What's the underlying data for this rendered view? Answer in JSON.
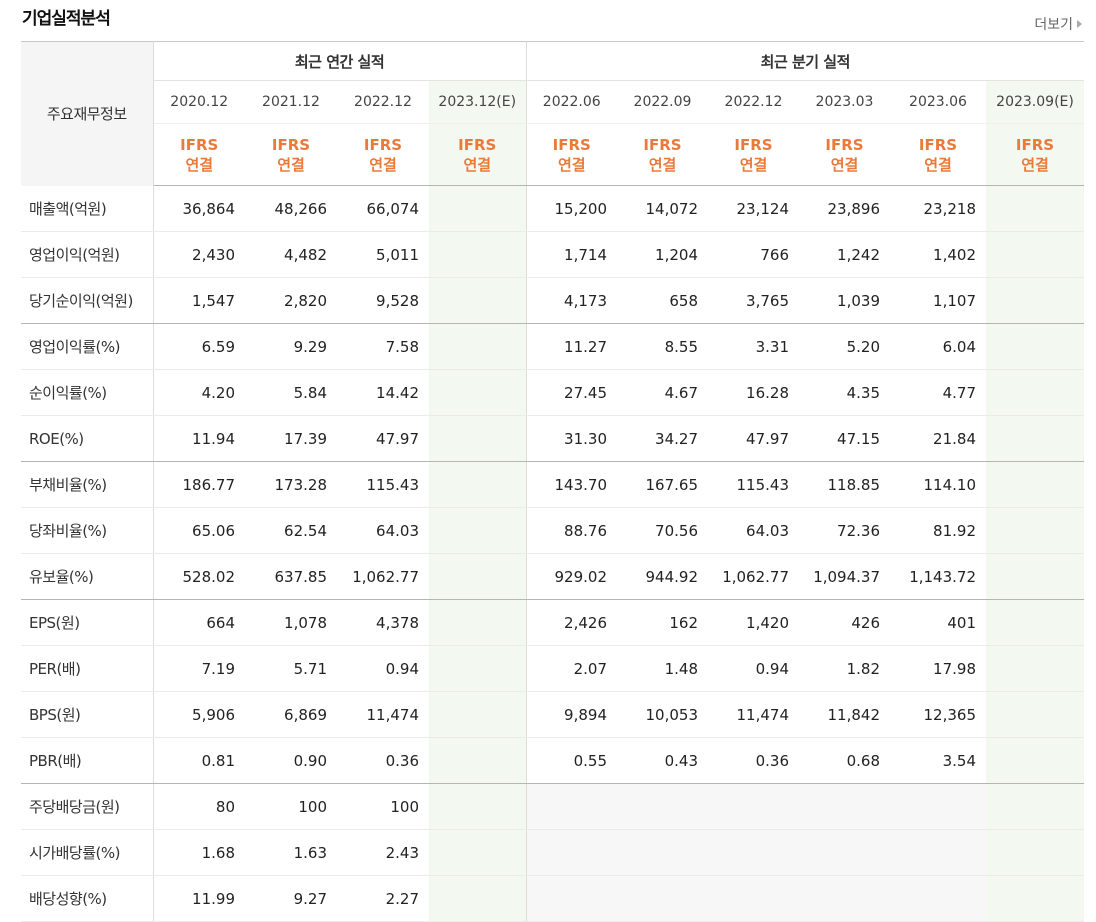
{
  "header": {
    "title": "기업실적분석",
    "more_label": "더보기"
  },
  "table": {
    "row_header": "주요재무정보",
    "groups": [
      "최근 연간 실적",
      "최근 분기 실적"
    ],
    "annual_periods": [
      "2020.12",
      "2021.12",
      "2022.12",
      "2023.12(E)"
    ],
    "quarter_periods": [
      "2022.06",
      "2022.09",
      "2022.12",
      "2023.03",
      "2023.06",
      "2023.09(E)"
    ],
    "basis_top": "IFRS",
    "basis_bottom": "연결",
    "rows": [
      {
        "label": "매출액(억원)",
        "annual": [
          "36,864",
          "48,266",
          "66,074",
          ""
        ],
        "quarter": [
          "15,200",
          "14,072",
          "23,124",
          "23,896",
          "23,218",
          ""
        ]
      },
      {
        "label": "영업이익(억원)",
        "annual": [
          "2,430",
          "4,482",
          "5,011",
          ""
        ],
        "quarter": [
          "1,714",
          "1,204",
          "766",
          "1,242",
          "1,402",
          ""
        ]
      },
      {
        "label": "당기순이익(억원)",
        "annual": [
          "1,547",
          "2,820",
          "9,528",
          ""
        ],
        "quarter": [
          "4,173",
          "658",
          "3,765",
          "1,039",
          "1,107",
          ""
        ]
      },
      {
        "label": "영업이익률(%)",
        "annual": [
          "6.59",
          "9.29",
          "7.58",
          ""
        ],
        "quarter": [
          "11.27",
          "8.55",
          "3.31",
          "5.20",
          "6.04",
          ""
        ]
      },
      {
        "label": "순이익률(%)",
        "annual": [
          "4.20",
          "5.84",
          "14.42",
          ""
        ],
        "quarter": [
          "27.45",
          "4.67",
          "16.28",
          "4.35",
          "4.77",
          ""
        ]
      },
      {
        "label": "ROE(%)",
        "annual": [
          "11.94",
          "17.39",
          "47.97",
          ""
        ],
        "quarter": [
          "31.30",
          "34.27",
          "47.97",
          "47.15",
          "21.84",
          ""
        ]
      },
      {
        "label": "부채비율(%)",
        "annual": [
          "186.77",
          "173.28",
          "115.43",
          ""
        ],
        "quarter": [
          "143.70",
          "167.65",
          "115.43",
          "118.85",
          "114.10",
          ""
        ]
      },
      {
        "label": "당좌비율(%)",
        "annual": [
          "65.06",
          "62.54",
          "64.03",
          ""
        ],
        "quarter": [
          "88.76",
          "70.56",
          "64.03",
          "72.36",
          "81.92",
          ""
        ]
      },
      {
        "label": "유보율(%)",
        "annual": [
          "528.02",
          "637.85",
          "1,062.77",
          ""
        ],
        "quarter": [
          "929.02",
          "944.92",
          "1,062.77",
          "1,094.37",
          "1,143.72",
          ""
        ]
      },
      {
        "label": "EPS(원)",
        "annual": [
          "664",
          "1,078",
          "4,378",
          ""
        ],
        "quarter": [
          "2,426",
          "162",
          "1,420",
          "426",
          "401",
          ""
        ]
      },
      {
        "label": "PER(배)",
        "annual": [
          "7.19",
          "5.71",
          "0.94",
          ""
        ],
        "quarter": [
          "2.07",
          "1.48",
          "0.94",
          "1.82",
          "17.98",
          ""
        ]
      },
      {
        "label": "BPS(원)",
        "annual": [
          "5,906",
          "6,869",
          "11,474",
          ""
        ],
        "quarter": [
          "9,894",
          "10,053",
          "11,474",
          "11,842",
          "12,365",
          ""
        ]
      },
      {
        "label": "PBR(배)",
        "annual": [
          "0.81",
          "0.90",
          "0.36",
          ""
        ],
        "quarter": [
          "0.55",
          "0.43",
          "0.36",
          "0.68",
          "3.54",
          ""
        ]
      },
      {
        "label": "주당배당금(원)",
        "annual": [
          "80",
          "100",
          "100",
          ""
        ],
        "quarter": [
          "",
          "",
          "",
          "",
          "",
          ""
        ]
      },
      {
        "label": "시가배당률(%)",
        "annual": [
          "1.68",
          "1.63",
          "2.43",
          ""
        ],
        "quarter": [
          "",
          "",
          "",
          "",
          "",
          ""
        ]
      },
      {
        "label": "배당성향(%)",
        "annual": [
          "11.99",
          "9.27",
          "2.27",
          ""
        ],
        "quarter": [
          "",
          "",
          "",
          "",
          "",
          ""
        ]
      }
    ]
  }
}
